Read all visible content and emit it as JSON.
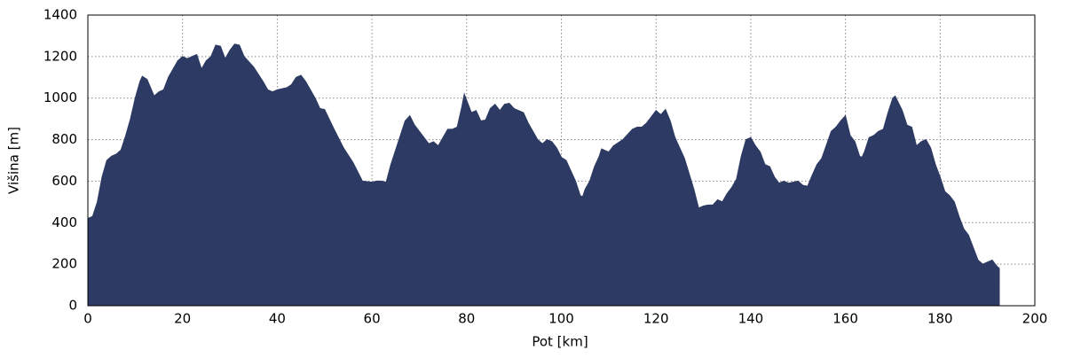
{
  "chart_data": {
    "type": "area",
    "xlabel": "Pot [km]",
    "ylabel": "Višina [m]",
    "color": "#2d3a63",
    "grid": true,
    "xlim": [
      0,
      200
    ],
    "xticks": [
      0,
      20,
      40,
      60,
      80,
      100,
      120,
      140,
      160,
      180,
      200
    ],
    "ylim": [
      0,
      1400
    ],
    "yticks": [
      0,
      200,
      400,
      600,
      800,
      1000,
      1200,
      1400
    ],
    "x": [
      0,
      1,
      2,
      3,
      4,
      5,
      6,
      7,
      8,
      9,
      10,
      11,
      11.5,
      12.5,
      14,
      15,
      16,
      17,
      18,
      19,
      20,
      21,
      22,
      23,
      24,
      25,
      26,
      27,
      28,
      29,
      30,
      31,
      32,
      33,
      35,
      37,
      38,
      39,
      40,
      42,
      43,
      44,
      45,
      46,
      48,
      49,
      50,
      52,
      54,
      56,
      58,
      60,
      61,
      62,
      63,
      64,
      66,
      67,
      68,
      69,
      71,
      72,
      73,
      74,
      75,
      76,
      77,
      78,
      79,
      79.5,
      80,
      81,
      82,
      83,
      84,
      85,
      86,
      87,
      88,
      89,
      90,
      92,
      93,
      95,
      96,
      97,
      98,
      99,
      100,
      101,
      102,
      103,
      104,
      104.5,
      105,
      106,
      107,
      108,
      108.5,
      110,
      111,
      113,
      115,
      116,
      117,
      118,
      119,
      120,
      121,
      122,
      123,
      124,
      126,
      128,
      129,
      130,
      131,
      132,
      133,
      134,
      135,
      136,
      137,
      138,
      139,
      140,
      141,
      142,
      143,
      144,
      145,
      146,
      147,
      148,
      150,
      151,
      152,
      153,
      154,
      155,
      157,
      158,
      159,
      160,
      161,
      162,
      163,
      163.5,
      164,
      165,
      166,
      167,
      168,
      169,
      170,
      170.5,
      172,
      173,
      174,
      175,
      176,
      177,
      178,
      179,
      180,
      181,
      182,
      183,
      184,
      185,
      186,
      187,
      188,
      189,
      190,
      191,
      192,
      192.5
    ],
    "values": [
      420,
      430,
      500,
      620,
      700,
      720,
      730,
      750,
      820,
      900,
      1000,
      1080,
      1105,
      1090,
      1010,
      1030,
      1040,
      1100,
      1140,
      1180,
      1200,
      1190,
      1200,
      1210,
      1140,
      1180,
      1200,
      1255,
      1250,
      1190,
      1230,
      1260,
      1255,
      1200,
      1150,
      1080,
      1040,
      1030,
      1040,
      1050,
      1065,
      1100,
      1110,
      1080,
      1000,
      950,
      945,
      850,
      760,
      690,
      600,
      595,
      600,
      600,
      595,
      680,
      820,
      890,
      915,
      870,
      810,
      780,
      790,
      770,
      810,
      850,
      850,
      860,
      960,
      1020,
      990,
      930,
      940,
      890,
      895,
      950,
      970,
      940,
      970,
      975,
      950,
      930,
      880,
      800,
      780,
      800,
      790,
      760,
      715,
      700,
      650,
      600,
      530,
      525,
      560,
      600,
      670,
      720,
      755,
      740,
      770,
      800,
      850,
      860,
      860,
      880,
      910,
      940,
      920,
      945,
      890,
      810,
      710,
      560,
      470,
      480,
      485,
      485,
      510,
      500,
      540,
      570,
      610,
      720,
      800,
      810,
      770,
      740,
      680,
      670,
      620,
      590,
      600,
      590,
      600,
      580,
      575,
      630,
      680,
      710,
      840,
      860,
      890,
      915,
      820,
      790,
      720,
      715,
      740,
      810,
      820,
      840,
      850,
      930,
      1000,
      1010,
      940,
      870,
      860,
      770,
      790,
      800,
      760,
      680,
      620,
      550,
      530,
      500,
      430,
      370,
      340,
      280,
      220,
      200,
      210,
      220,
      190,
      180
    ]
  }
}
